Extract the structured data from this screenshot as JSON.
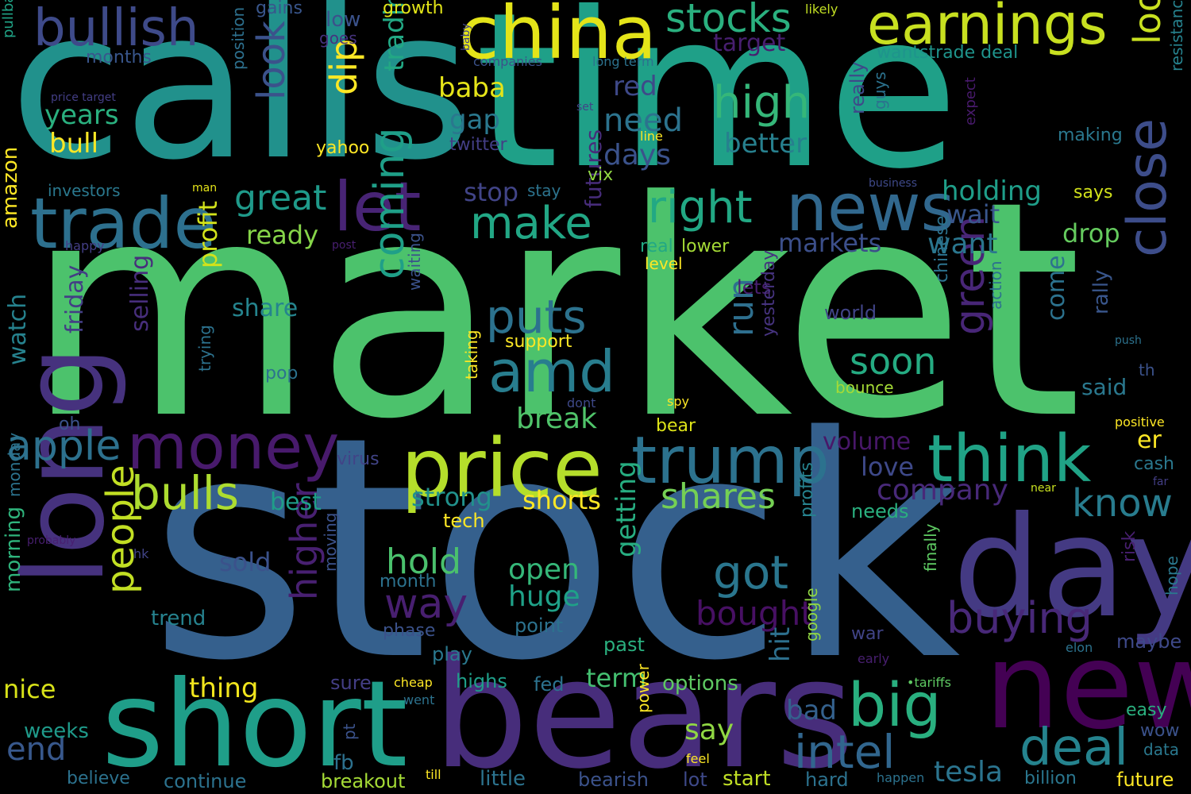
{
  "colors": {
    "background": "#000000",
    "palette_note_c1": "#440154",
    "c2": "#3b528b",
    "c3": "#21918c",
    "c4": "#5ec962",
    "c5": "#fde725"
  },
  "words": {
    "market": "market",
    "stock": "stock",
    "calls": "calls",
    "time": "time",
    "bears": "bears",
    "short": "short",
    "long": "long",
    "day": "day",
    "new": "new",
    "china": "china",
    "earnings": "earnings",
    "price": "price",
    "trump": "trump",
    "trade": "trade",
    "bullish": "bullish",
    "news": "news",
    "let": "let",
    "money": "money",
    "think": "think",
    "stocks": "stocks",
    "big": "big",
    "close": "close",
    "looking": "looking",
    "deal": "deal",
    "amd": "amd",
    "right": "right",
    "intel": "intel",
    "buying": "buying",
    "high": "high",
    "make": "make",
    "puts": "puts",
    "coming": "coming",
    "bulls": "bulls",
    "apple": "apple",
    "got": "got",
    "hold": "hold",
    "way": "way",
    "green": "green",
    "know": "know",
    "higher": "higher",
    "people": "people",
    "look": "look",
    "dip": "dip",
    "great": "great",
    "soon": "soon",
    "shares": "shares",
    "huge": "huge",
    "open": "open",
    "bought": "bought",
    "tesla": "tesla",
    "need": "need",
    "run": "run",
    "say": "say",
    "break": "break",
    "strong": "strong",
    "shorts": "shorts",
    "baba": "baba",
    "gap": "gap",
    "red": "red",
    "better": "better",
    "days": "days",
    "years": "years",
    "bull": "bull",
    "holding": "holding",
    "wait": "wait",
    "want": "want",
    "drop": "drop",
    "markets": "markets",
    "company": "company",
    "love": "love",
    "end": "end",
    "term": "term",
    "thing": "thing",
    "options": "options",
    "bad": "bad",
    "hit": "hit",
    "getting": "getting",
    "trading": "trading",
    "stop": "stop",
    "share": "share",
    "profit": "profit",
    "ready": "ready",
    "best": "best",
    "sold": "sold",
    "watch": "watch",
    "friday": "friday",
    "selling": "selling",
    "amazon": "amazon",
    "nice": "nice",
    "morning": "morning",
    "weeks": "weeks",
    "trend": "trend",
    "fb": "fb",
    "continue": "continue",
    "breakout": "breakout",
    "little": "little",
    "bearish": "bearish",
    "lot": "lot",
    "start": "start",
    "hard": "hard",
    "billion": "billion",
    "future": "future",
    "volume": "volume",
    "futures": "futures",
    "months": "months",
    "low": "low",
    "growth": "growth",
    "gains": "gains",
    "goes": "goes",
    "target": "target",
    "wantstrade_deal": "wantstrade deal",
    "companies": "companies",
    "long_term": "long term",
    "resistance": "resistance",
    "likely": "likely",
    "baby": "baby",
    "pullback": "pullback",
    "price_target": "price target",
    "position": "position",
    "set": "set",
    "yahoo": "yahoo",
    "twitter": "twitter",
    "line": "line",
    "making": "making",
    "expect": "expect",
    "guys": "guys",
    "really": "really",
    "investors": "investors",
    "man": "man",
    "stay": "stay",
    "vix": "vix",
    "business": "business",
    "says": "says",
    "happy": "happy",
    "post": "post",
    "real": "real",
    "lower": "lower",
    "level": "level",
    "lets": "lets",
    "world": "world",
    "support": "support",
    "waiting": "waiting",
    "chinese": "chinese",
    "action": "action",
    "rally": "rally",
    "come": "come",
    "said": "said",
    "push": "push",
    "th": "th",
    "bounce": "bounce",
    "yesterday": "yesterday",
    "pop": "pop",
    "trying": "trying",
    "taking": "taking",
    "dont": "dont",
    "spy": "spy",
    "bear": "bear",
    "er": "er",
    "positive": "positive",
    "cash": "cash",
    "virus": "virus",
    "far": "far",
    "tech": "tech",
    "near": "near",
    "needs": "needs",
    "oh": "oh",
    "monday": "monday",
    "probably": "probably",
    "hk": "hk",
    "month": "month",
    "moving": "moving",
    "profits": "profits",
    "finally": "finally",
    "risk": "risk",
    "hope": "hope",
    "phase": "phase",
    "point": "point",
    "past": "past",
    "play": "play",
    "google": "google",
    "war": "war",
    "early": "early",
    "elon": "elon",
    "maybe": "maybe",
    "sure": "sure",
    "highs": "highs",
    "fed": "fed",
    "cheap": "cheap",
    "went": "went",
    "power": "power",
    "feel": "feel",
    "tariffs": "•tariffs",
    "easy": "easy",
    "wow": "wow",
    "data": "data",
    "believe": "believe",
    "till": "till",
    "pt": "pt",
    "happen": "happen"
  }
}
